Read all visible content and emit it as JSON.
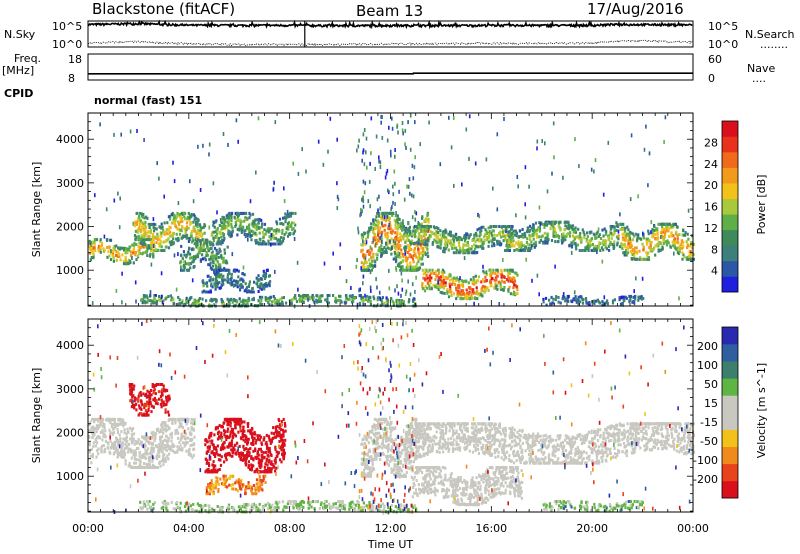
{
  "header": {
    "station": "Blackstone (fitACF)",
    "beam": "Beam 13",
    "date": "17/Aug/2016"
  },
  "labels": {
    "nsky": "N.Sky",
    "nsearch": "N.Search",
    "nsearch_dots": "........",
    "freq": "Freq.",
    "mhz": "[MHz]",
    "cpid": "CPID",
    "nave": "Nave",
    "nave_dots": "....",
    "cpid_value": "normal (fast) 151",
    "y_hi_left": "10^5",
    "y_lo_left": "10^0",
    "y_hi_right": "10^5",
    "y_lo_right": "10^0",
    "freq_hi": "18",
    "freq_lo": "8",
    "nave_hi": "60",
    "nave_lo": "0"
  },
  "colors": {
    "power_scale": [
      "#1f1fe0",
      "#2b57a6",
      "#3d7f7a",
      "#3e8a5a",
      "#5fae47",
      "#a9c93c",
      "#f2c21b",
      "#f29a1c",
      "#ef6a1b",
      "#e8331c",
      "#d9101c"
    ],
    "velocity_scale": [
      "#2a2ab0",
      "#2f5f9f",
      "#3c7f6c",
      "#5fb544",
      "#c8c8c0",
      "#c8c8c0",
      "#f2c21b",
      "#f08a1c",
      "#e8431c",
      "#d9101c"
    ]
  },
  "chart_data": [
    {
      "type": "line",
      "panel": "noise",
      "title": "Blackstone (fitACF)   Beam 13   17/Aug/2016",
      "ylabel": "N.Sky",
      "y2label": "N.Search",
      "yscale": "log",
      "ylim": [
        1,
        100000
      ],
      "series": [
        {
          "name": "N.Sky",
          "x": [
            0,
            1,
            2,
            3,
            4,
            6,
            8,
            10,
            12,
            14,
            16,
            18,
            20,
            21,
            22,
            23,
            24
          ],
          "values": [
            20000,
            25000,
            30000,
            20000,
            15000,
            14000,
            14000,
            12000,
            13000,
            13000,
            14000,
            14000,
            14000,
            20000,
            20000,
            18000,
            17000
          ]
        },
        {
          "name": "N.Search",
          "x": [
            0,
            1,
            2,
            3,
            4,
            6,
            8,
            10,
            12,
            14,
            16,
            18,
            20,
            21,
            22,
            23,
            24
          ],
          "values": [
            5,
            8,
            10,
            6,
            4,
            3,
            3,
            3,
            4,
            4,
            5,
            5,
            6,
            12,
            15,
            10,
            8
          ]
        }
      ]
    },
    {
      "type": "line",
      "panel": "freq",
      "ylabel": "Freq. [MHz]",
      "y2label": "Nave",
      "ylim": [
        8,
        18
      ],
      "y2lim": [
        0,
        60
      ],
      "series": [
        {
          "name": "Freq.",
          "x": [
            0,
            12.9,
            12.91,
            24
          ],
          "values": [
            10.4,
            10.4,
            10.6,
            10.6
          ]
        }
      ]
    },
    {
      "type": "heatmap",
      "panel": "power",
      "cpid": "normal (fast) 151",
      "ylabel": "Slant Range [km]",
      "colorbar_label": "Power [dB]",
      "colorbar_ticks": [
        28,
        24,
        20,
        16,
        12,
        8,
        4
      ],
      "ylim": [
        180,
        4600
      ],
      "yticks": [
        1000,
        2000,
        3000,
        4000
      ],
      "xlim": [
        0,
        24
      ],
      "features": [
        {
          "t0": 0.0,
          "t1": 2.6,
          "r0": 1150,
          "r1": 1700,
          "peak": 24
        },
        {
          "t0": 1.8,
          "t1": 4.6,
          "r0": 1450,
          "r1": 2300,
          "peak": 22
        },
        {
          "t0": 3.6,
          "t1": 5.5,
          "r0": 1000,
          "r1": 1700,
          "peak": 14
        },
        {
          "t0": 4.8,
          "t1": 8.2,
          "r0": 1600,
          "r1": 2300,
          "peak": 16
        },
        {
          "t0": 4.5,
          "t1": 7.2,
          "r0": 500,
          "r1": 1000,
          "peak": 10
        },
        {
          "t0": 2.0,
          "t1": 13.0,
          "r0": 180,
          "r1": 420,
          "peak": 16
        },
        {
          "t0": 10.8,
          "t1": 13.5,
          "r0": 1000,
          "r1": 2300,
          "peak": 26
        },
        {
          "t0": 12.5,
          "t1": 16.8,
          "r0": 1400,
          "r1": 2000,
          "peak": 18
        },
        {
          "t0": 13.2,
          "t1": 17.0,
          "r0": 350,
          "r1": 1000,
          "peak": 30
        },
        {
          "t0": 16.5,
          "t1": 21.0,
          "r0": 1450,
          "r1": 2100,
          "peak": 18
        },
        {
          "t0": 21.0,
          "t1": 24.0,
          "r0": 1250,
          "r1": 2050,
          "peak": 24
        },
        {
          "t0": 18.0,
          "t1": 22.0,
          "r0": 200,
          "r1": 400,
          "peak": 8
        }
      ]
    },
    {
      "type": "heatmap",
      "panel": "velocity",
      "ylabel": "Slant Range [km]",
      "colorbar_label": "Velocity [m s^-1]",
      "colorbar_ticks": [
        200,
        100,
        50,
        15,
        -15,
        -50,
        -100,
        -200
      ],
      "ylim": [
        180,
        4600
      ],
      "yticks": [
        1000,
        2000,
        3000,
        4000
      ],
      "xlim": [
        0,
        24
      ],
      "xticks": [
        "00:00",
        "04:00",
        "08:00",
        "12:00",
        "16:00",
        "20:00",
        "00:00"
      ],
      "xlabel": "Time UT",
      "features": [
        {
          "t0": 0.0,
          "t1": 4.2,
          "r0": 1200,
          "r1": 2300,
          "vel": 0
        },
        {
          "t0": 1.6,
          "t1": 3.2,
          "r0": 2400,
          "r1": 3100,
          "vel": -180
        },
        {
          "t0": 4.6,
          "t1": 7.8,
          "r0": 1100,
          "r1": 2300,
          "vel": -190
        },
        {
          "t0": 4.6,
          "t1": 7.0,
          "r0": 600,
          "r1": 1000,
          "vel": -60
        },
        {
          "t0": 2.0,
          "t1": 13.0,
          "r0": 180,
          "r1": 420,
          "vel": 30
        },
        {
          "t0": 10.8,
          "t1": 13.0,
          "r0": 1000,
          "r1": 2300,
          "vel": 0
        },
        {
          "t0": 12.5,
          "t1": 24.0,
          "r0": 1300,
          "r1": 2200,
          "vel": 0
        },
        {
          "t0": 12.8,
          "t1": 17.2,
          "r0": 350,
          "r1": 1200,
          "vel": 0
        },
        {
          "t0": 18.0,
          "t1": 22.0,
          "r0": 200,
          "r1": 420,
          "vel": 40
        }
      ]
    }
  ]
}
